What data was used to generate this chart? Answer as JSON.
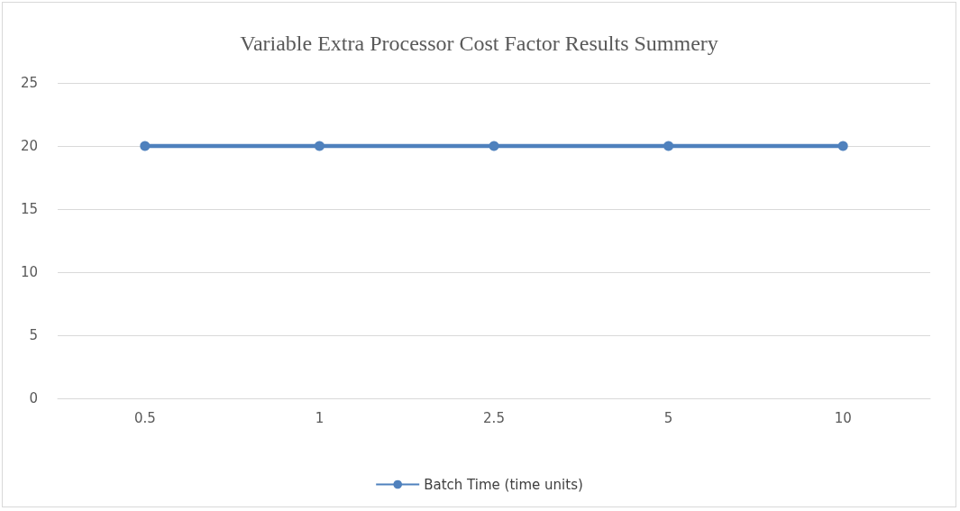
{
  "chart_data": {
    "type": "line",
    "title": "Variable Extra Processor Cost Factor Results Summery",
    "categories": [
      "0.5",
      "1",
      "2.5",
      "5",
      "10"
    ],
    "series": [
      {
        "name": "Batch Time (time units)",
        "color": "#4f81bd",
        "values": [
          20,
          20,
          20,
          20,
          20
        ]
      }
    ],
    "ylim": [
      0,
      25
    ],
    "yticks": [
      0,
      5,
      10,
      15,
      20,
      25
    ],
    "grid": "y",
    "legend": "bottom",
    "marker": "circle",
    "line_style": "solid"
  }
}
